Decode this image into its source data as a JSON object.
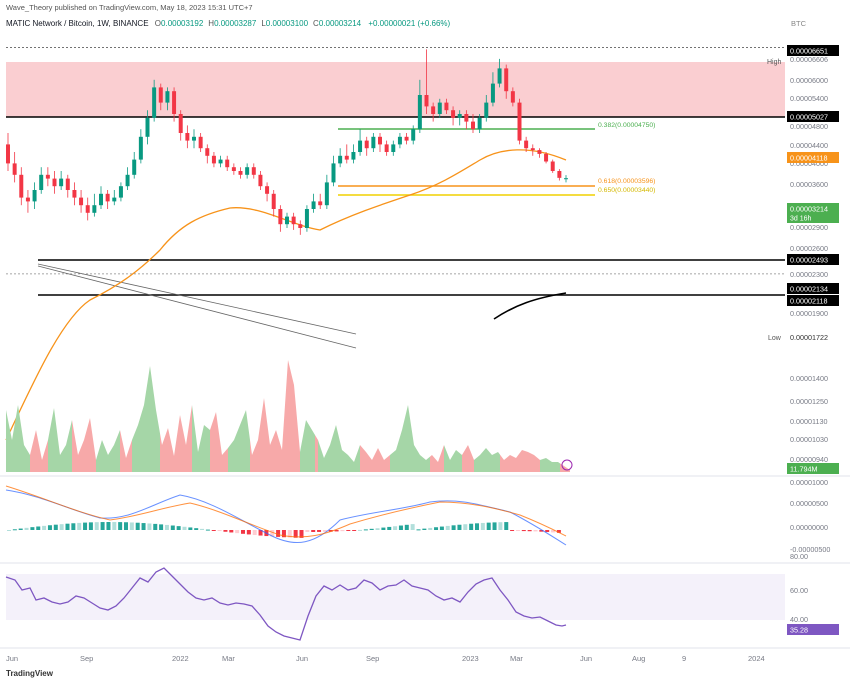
{
  "header": {
    "publisher_line": "Wave_Theory published on TradingView.com, May 18, 2023 15:31 UTC+7",
    "symbol": "MATIC Network / Bitcoin, 1W, BINANCE",
    "ohlc": [
      {
        "key": "O",
        "value": "0.00003192"
      },
      {
        "key": "H",
        "value": "0.00003287"
      },
      {
        "key": "L",
        "value": "0.00003100"
      },
      {
        "key": "C",
        "value": "0.00003214"
      }
    ],
    "change": "+0.00000021 (+0.66%)",
    "currency": "BTC"
  },
  "footer": {
    "logo_text": "TradingView",
    "xaxis_labels": [
      "Jun",
      "Sep",
      "2022",
      "Mar",
      "Jun",
      "Sep",
      "2023",
      "Mar",
      "Jun",
      "Aug",
      "9",
      "2024"
    ]
  },
  "chart_data": {
    "type": "candlestick",
    "price_axis_labels": [
      "0.00006606",
      "0.00006000",
      "0.00005400",
      "0.00004800",
      "0.00004400",
      "0.00004000",
      "0.00003600",
      "0.00003200",
      "0.00002900",
      "0.00002600",
      "0.00002300",
      "0.00001900"
    ],
    "price_tags": [
      {
        "label": "0.00006651",
        "style": "dark"
      },
      {
        "label": "0.00005027",
        "style": "dark"
      },
      {
        "label": "0.00004118",
        "style": "orange"
      },
      {
        "label": "0.00003214",
        "style": "green",
        "sub": "3d 16h"
      },
      {
        "label": "0.00002493",
        "style": "dark"
      },
      {
        "label": "0.00002134",
        "style": "dark"
      },
      {
        "label": "0.00002118",
        "style": "dark"
      }
    ],
    "high": {
      "label": "High",
      "value": "0.00006606"
    },
    "low": {
      "label": "Low",
      "value": "0.00001722"
    },
    "fib_levels": [
      {
        "label": "0.382(0.00004750)"
      },
      {
        "label": "0.618(0.00003596)"
      },
      {
        "label": "0.650(0.00003440)"
      }
    ],
    "volume_axis_labels": [
      "0.00001400",
      "0.00001250",
      "0.00001130",
      "0.00001030",
      "0.00000940"
    ],
    "volume_tag": "11.794M",
    "macd_axis_labels": [
      "0.00001000",
      "0.00000500",
      "0.00000000",
      "-0.00000500"
    ],
    "rsi_axis_labels": [
      "80.00",
      "60.00",
      "40.00"
    ],
    "rsi_tag": "35.28",
    "candles": [
      {
        "o": 4.1,
        "c": 3.6,
        "h": 4.4,
        "l": 3.4
      },
      {
        "o": 3.6,
        "c": 3.3,
        "h": 3.9,
        "l": 3.1
      },
      {
        "o": 3.3,
        "c": 2.7,
        "h": 3.5,
        "l": 2.5
      },
      {
        "o": 2.7,
        "c": 2.6,
        "h": 2.9,
        "l": 2.3
      },
      {
        "o": 2.6,
        "c": 2.9,
        "h": 3.1,
        "l": 2.4
      },
      {
        "o": 2.9,
        "c": 3.3,
        "h": 3.5,
        "l": 2.8
      },
      {
        "o": 3.3,
        "c": 3.2,
        "h": 3.5,
        "l": 3.0
      },
      {
        "o": 3.2,
        "c": 3.0,
        "h": 3.4,
        "l": 2.8
      },
      {
        "o": 3.0,
        "c": 3.2,
        "h": 3.4,
        "l": 2.9
      },
      {
        "o": 3.2,
        "c": 2.9,
        "h": 3.3,
        "l": 2.7
      },
      {
        "o": 2.9,
        "c": 2.7,
        "h": 3.1,
        "l": 2.5
      },
      {
        "o": 2.7,
        "c": 2.5,
        "h": 2.9,
        "l": 2.3
      },
      {
        "o": 2.5,
        "c": 2.3,
        "h": 2.7,
        "l": 2.1
      },
      {
        "o": 2.3,
        "c": 2.5,
        "h": 2.8,
        "l": 2.2
      },
      {
        "o": 2.5,
        "c": 2.8,
        "h": 3.0,
        "l": 2.4
      },
      {
        "o": 2.8,
        "c": 2.6,
        "h": 2.9,
        "l": 2.4
      },
      {
        "o": 2.6,
        "c": 2.7,
        "h": 2.9,
        "l": 2.5
      },
      {
        "o": 2.7,
        "c": 3.0,
        "h": 3.1,
        "l": 2.6
      },
      {
        "o": 3.0,
        "c": 3.3,
        "h": 3.5,
        "l": 2.9
      },
      {
        "o": 3.3,
        "c": 3.7,
        "h": 3.9,
        "l": 3.2
      },
      {
        "o": 3.7,
        "c": 4.3,
        "h": 4.5,
        "l": 3.6
      },
      {
        "o": 4.3,
        "c": 4.8,
        "h": 5.0,
        "l": 4.1
      },
      {
        "o": 4.8,
        "c": 5.6,
        "h": 5.8,
        "l": 4.7
      },
      {
        "o": 5.6,
        "c": 5.2,
        "h": 5.7,
        "l": 5.0
      },
      {
        "o": 5.2,
        "c": 5.5,
        "h": 5.6,
        "l": 5.0
      },
      {
        "o": 5.5,
        "c": 4.9,
        "h": 5.6,
        "l": 4.7
      },
      {
        "o": 4.9,
        "c": 4.4,
        "h": 5.0,
        "l": 4.2
      },
      {
        "o": 4.4,
        "c": 4.2,
        "h": 4.6,
        "l": 4.0
      },
      {
        "o": 4.2,
        "c": 4.3,
        "h": 4.5,
        "l": 4.0
      },
      {
        "o": 4.3,
        "c": 4.0,
        "h": 4.4,
        "l": 3.9
      },
      {
        "o": 4.0,
        "c": 3.8,
        "h": 4.1,
        "l": 3.6
      },
      {
        "o": 3.8,
        "c": 3.6,
        "h": 3.9,
        "l": 3.5
      },
      {
        "o": 3.6,
        "c": 3.7,
        "h": 3.8,
        "l": 3.5
      },
      {
        "o": 3.7,
        "c": 3.5,
        "h": 3.8,
        "l": 3.4
      },
      {
        "o": 3.5,
        "c": 3.4,
        "h": 3.6,
        "l": 3.3
      },
      {
        "o": 3.4,
        "c": 3.3,
        "h": 3.5,
        "l": 3.2
      },
      {
        "o": 3.3,
        "c": 3.5,
        "h": 3.6,
        "l": 3.2
      },
      {
        "o": 3.5,
        "c": 3.3,
        "h": 3.6,
        "l": 3.2
      },
      {
        "o": 3.3,
        "c": 3.0,
        "h": 3.4,
        "l": 2.9
      },
      {
        "o": 3.0,
        "c": 2.8,
        "h": 3.1,
        "l": 2.6
      },
      {
        "o": 2.8,
        "c": 2.4,
        "h": 2.9,
        "l": 2.2
      },
      {
        "o": 2.4,
        "c": 2.0,
        "h": 2.5,
        "l": 1.8
      },
      {
        "o": 2.0,
        "c": 2.2,
        "h": 2.3,
        "l": 1.9
      },
      {
        "o": 2.2,
        "c": 2.0,
        "h": 2.3,
        "l": 1.85
      },
      {
        "o": 2.0,
        "c": 1.9,
        "h": 2.1,
        "l": 1.72
      },
      {
        "o": 1.9,
        "c": 2.4,
        "h": 2.5,
        "l": 1.8
      },
      {
        "o": 2.4,
        "c": 2.6,
        "h": 2.8,
        "l": 2.3
      },
      {
        "o": 2.6,
        "c": 2.5,
        "h": 2.8,
        "l": 2.4
      },
      {
        "o": 2.5,
        "c": 3.1,
        "h": 3.3,
        "l": 2.4
      },
      {
        "o": 3.1,
        "c": 3.6,
        "h": 3.8,
        "l": 3.0
      },
      {
        "o": 3.6,
        "c": 3.8,
        "h": 4.0,
        "l": 3.5
      },
      {
        "o": 3.8,
        "c": 3.7,
        "h": 4.1,
        "l": 3.6
      },
      {
        "o": 3.7,
        "c": 3.9,
        "h": 4.1,
        "l": 3.6
      },
      {
        "o": 3.9,
        "c": 4.2,
        "h": 4.5,
        "l": 3.8
      },
      {
        "o": 4.2,
        "c": 4.0,
        "h": 4.3,
        "l": 3.8
      },
      {
        "o": 4.0,
        "c": 4.3,
        "h": 4.4,
        "l": 3.9
      },
      {
        "o": 4.3,
        "c": 4.1,
        "h": 4.4,
        "l": 3.9
      },
      {
        "o": 4.1,
        "c": 3.9,
        "h": 4.2,
        "l": 3.8
      },
      {
        "o": 3.9,
        "c": 4.1,
        "h": 4.2,
        "l": 3.8
      },
      {
        "o": 4.1,
        "c": 4.3,
        "h": 4.4,
        "l": 4.0
      },
      {
        "o": 4.3,
        "c": 4.2,
        "h": 4.4,
        "l": 4.1
      },
      {
        "o": 4.2,
        "c": 4.5,
        "h": 4.6,
        "l": 4.1
      },
      {
        "o": 4.5,
        "c": 5.4,
        "h": 5.8,
        "l": 4.4
      },
      {
        "o": 5.4,
        "c": 5.1,
        "h": 6.6,
        "l": 4.9
      },
      {
        "o": 5.1,
        "c": 4.9,
        "h": 5.2,
        "l": 4.7
      },
      {
        "o": 4.9,
        "c": 5.2,
        "h": 5.3,
        "l": 4.8
      },
      {
        "o": 5.2,
        "c": 5.0,
        "h": 5.3,
        "l": 4.9
      },
      {
        "o": 5.0,
        "c": 4.8,
        "h": 5.1,
        "l": 4.6
      },
      {
        "o": 4.8,
        "c": 4.9,
        "h": 5.0,
        "l": 4.6
      },
      {
        "o": 4.9,
        "c": 4.7,
        "h": 5.0,
        "l": 4.5
      },
      {
        "o": 4.7,
        "c": 4.5,
        "h": 4.9,
        "l": 4.4
      },
      {
        "o": 4.5,
        "c": 4.8,
        "h": 4.9,
        "l": 4.4
      },
      {
        "o": 4.8,
        "c": 5.2,
        "h": 5.4,
        "l": 4.7
      },
      {
        "o": 5.2,
        "c": 5.7,
        "h": 6.0,
        "l": 5.1
      },
      {
        "o": 5.7,
        "c": 6.1,
        "h": 6.35,
        "l": 5.6
      },
      {
        "o": 6.1,
        "c": 5.5,
        "h": 6.2,
        "l": 5.3
      },
      {
        "o": 5.5,
        "c": 5.2,
        "h": 5.6,
        "l": 5.1
      },
      {
        "o": 5.2,
        "c": 4.2,
        "h": 5.3,
        "l": 4.1
      },
      {
        "o": 4.2,
        "c": 4.0,
        "h": 4.3,
        "l": 3.9
      },
      {
        "o": 4.0,
        "c": 3.95,
        "h": 4.1,
        "l": 3.8
      },
      {
        "o": 3.95,
        "c": 3.85,
        "h": 4.0,
        "l": 3.75
      },
      {
        "o": 3.85,
        "c": 3.65,
        "h": 3.9,
        "l": 3.6
      },
      {
        "o": 3.65,
        "c": 3.4,
        "h": 3.7,
        "l": 3.35
      },
      {
        "o": 3.4,
        "c": 3.22,
        "h": 3.45,
        "l": 3.15
      },
      {
        "o": 3.19,
        "c": 3.21,
        "h": 3.29,
        "l": 3.1
      }
    ]
  }
}
